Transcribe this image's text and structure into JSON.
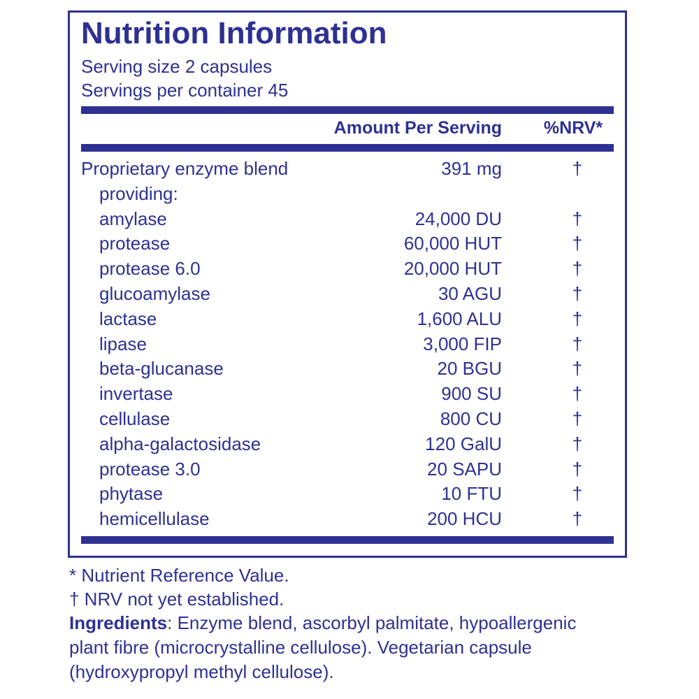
{
  "header": {
    "title": "Nutrition Information",
    "serving_size": "Serving size  2 capsules",
    "servings_per_container": "Servings per container  45"
  },
  "table": {
    "columns": [
      "Amount Per Serving",
      "%NRV*"
    ],
    "blend": {
      "name": "Proprietary enzyme blend",
      "amount": "391 mg",
      "nrv": "†"
    },
    "providing": "providing:",
    "rows": [
      {
        "name": "amylase",
        "amount": "24,000 DU",
        "nrv": "†"
      },
      {
        "name": "protease",
        "amount": "60,000 HUT",
        "nrv": "†"
      },
      {
        "name": "protease 6.0",
        "amount": "20,000 HUT",
        "nrv": "†"
      },
      {
        "name": "glucoamylase",
        "amount": "30 AGU",
        "nrv": "†"
      },
      {
        "name": "lactase",
        "amount": "1,600 ALU",
        "nrv": "†"
      },
      {
        "name": "lipase",
        "amount": "3,000 FIP",
        "nrv": "†"
      },
      {
        "name": "beta-glucanase",
        "amount": "20 BGU",
        "nrv": "†"
      },
      {
        "name": "invertase",
        "amount": "900 SU",
        "nrv": "†"
      },
      {
        "name": "cellulase",
        "amount": "800 CU",
        "nrv": "†"
      },
      {
        "name": "alpha-galactosidase",
        "amount": "120 GalU",
        "nrv": "†"
      },
      {
        "name": "protease 3.0",
        "amount": "20 SAPU",
        "nrv": "†"
      },
      {
        "name": "phytase",
        "amount": "10 FTU",
        "nrv": "†"
      },
      {
        "name": "hemicellulase",
        "amount": "200 HCU",
        "nrv": "†"
      }
    ]
  },
  "footnotes": [
    "* Nutrient Reference Value.",
    "† NRV not yet established."
  ],
  "ingredients": {
    "label": "Ingredients",
    "text": ": Enzyme blend, ascorbyl palmitate, hypoallergenic plant fibre (microcrystalline cellulose). Vegetarian capsule (hydroxypropyl methyl cellulose)."
  }
}
